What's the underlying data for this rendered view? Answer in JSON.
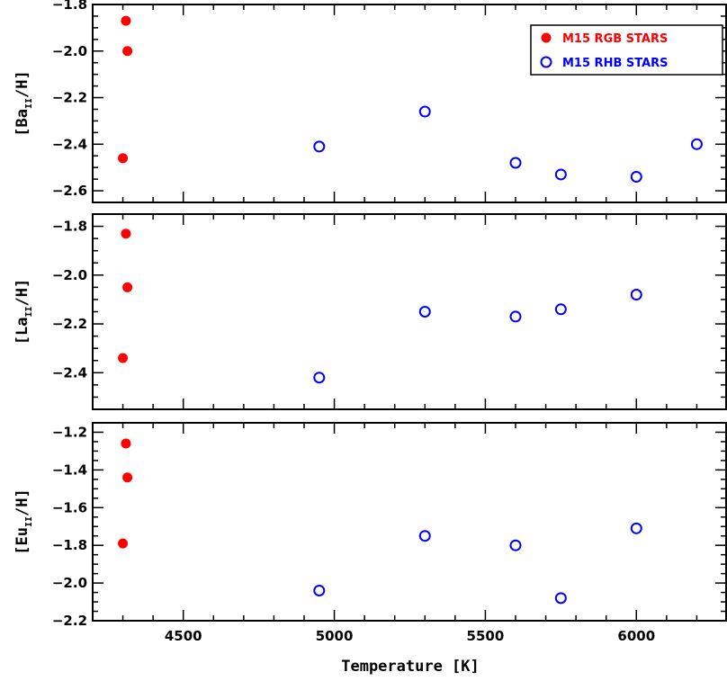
{
  "chart_data": {
    "type": "scatter",
    "x_label": "Temperature [K]",
    "xlim": [
      4200,
      6300
    ],
    "x_ticks": [
      4500,
      5000,
      5500,
      6000
    ],
    "legend": {
      "placement": "top-right",
      "entries": [
        {
          "label": "M15 RGB STARS",
          "marker": "filled-circle",
          "color": "#ff0000"
        },
        {
          "label": "M15 RHB STARS",
          "marker": "open-circle",
          "color": "#0000ff"
        }
      ]
    },
    "panels": [
      {
        "ylabel": {
          "prefix": "[Ba",
          "sub": "II",
          "suffix": "/H]"
        },
        "ylim": [
          -2.65,
          -1.8
        ],
        "y_ticks": [
          -2.6,
          -2.4,
          -2.2,
          -2.0,
          -1.8
        ],
        "y_tick_labels": [
          "−2.6",
          "−2.4",
          "−2.2",
          "−2.0",
          "−1.8"
        ],
        "series": [
          {
            "name": "M15 RGB STARS",
            "points": [
              [
                4310,
                -1.87
              ],
              [
                4315,
                -2.0
              ],
              [
                4300,
                -2.46
              ]
            ]
          },
          {
            "name": "M15 RHB STARS",
            "points": [
              [
                4950,
                -2.41
              ],
              [
                5300,
                -2.26
              ],
              [
                5600,
                -2.48
              ],
              [
                5750,
                -2.53
              ],
              [
                6000,
                -2.54
              ],
              [
                6200,
                -2.4
              ]
            ]
          }
        ]
      },
      {
        "ylabel": {
          "prefix": "[La",
          "sub": "II",
          "suffix": "/H]"
        },
        "ylim": [
          -2.55,
          -1.75
        ],
        "y_ticks": [
          -2.4,
          -2.2,
          -2.0,
          -1.8
        ],
        "y_tick_labels": [
          "−2.4",
          "−2.2",
          "−2.0",
          "−1.8"
        ],
        "series": [
          {
            "name": "M15 RGB STARS",
            "points": [
              [
                4310,
                -1.83
              ],
              [
                4315,
                -2.05
              ],
              [
                4300,
                -2.34
              ]
            ]
          },
          {
            "name": "M15 RHB STARS",
            "points": [
              [
                4950,
                -2.42
              ],
              [
                5300,
                -2.15
              ],
              [
                5600,
                -2.17
              ],
              [
                5750,
                -2.14
              ],
              [
                6000,
                -2.08
              ]
            ]
          }
        ]
      },
      {
        "ylabel": {
          "prefix": "[Eu",
          "sub": "II",
          "suffix": "/H]"
        },
        "ylim": [
          -2.2,
          -1.15
        ],
        "y_ticks": [
          -2.2,
          -2.0,
          -1.8,
          -1.6,
          -1.4,
          -1.2
        ],
        "y_tick_labels": [
          "−2.2",
          "−2.0",
          "−1.8",
          "−1.6",
          "−1.4",
          "−1.2"
        ],
        "series": [
          {
            "name": "M15 RGB STARS",
            "points": [
              [
                4310,
                -1.26
              ],
              [
                4315,
                -1.44
              ],
              [
                4300,
                -1.79
              ]
            ]
          },
          {
            "name": "M15 RHB STARS",
            "points": [
              [
                4950,
                -2.04
              ],
              [
                5300,
                -1.75
              ],
              [
                5600,
                -1.8
              ],
              [
                5750,
                -2.08
              ],
              [
                6000,
                -1.71
              ]
            ]
          }
        ]
      }
    ]
  }
}
